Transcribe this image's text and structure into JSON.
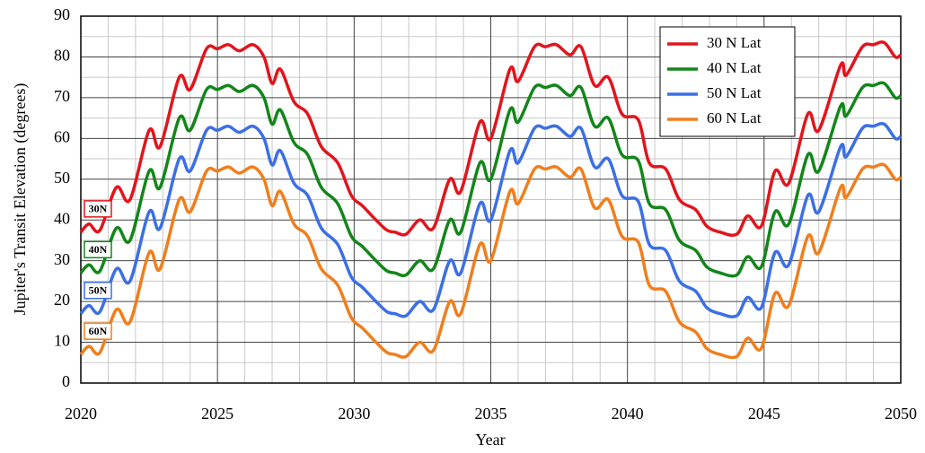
{
  "chart_data": {
    "type": "line",
    "xlabel": "Year",
    "ylabel": "Jupiter's Transit Elevation (degrees)",
    "x": [
      2020,
      2020.3,
      2020.7,
      2021.3,
      2021.8,
      2022.5,
      2022.9,
      2023.6,
      2024.0,
      2024.6,
      2025.0,
      2025.4,
      2025.8,
      2026.3,
      2026.7,
      2027.0,
      2027.3,
      2027.8,
      2028.3,
      2028.8,
      2029.4,
      2029.9,
      2030.3,
      2030.8,
      2031.2,
      2031.5,
      2031.9,
      2032.4,
      2032.9,
      2033.5,
      2033.9,
      2034.6,
      2035.0,
      2035.7,
      2036.0,
      2036.6,
      2037.0,
      2037.4,
      2037.9,
      2038.3,
      2038.8,
      2039.3,
      2039.8,
      2040.4,
      2040.8,
      2041.4,
      2041.9,
      2042.5,
      2042.9,
      2043.4,
      2044.0,
      2044.4,
      2044.9,
      2045.4,
      2045.9,
      2046.6,
      2047.0,
      2047.8,
      2048.0,
      2048.6,
      2049.0,
      2049.4,
      2049.8,
      2050
    ],
    "series": [
      {
        "name": "30 N Lat",
        "tag": "30N",
        "color": "#e3141c",
        "values": [
          37,
          39,
          37.5,
          48,
          45,
          62,
          58,
          75,
          72,
          82,
          82,
          83,
          81.5,
          83,
          80,
          73.5,
          77,
          69,
          66,
          58,
          54,
          46,
          43.5,
          40,
          37.5,
          37,
          36.5,
          40,
          38,
          50,
          47,
          64,
          60,
          77,
          74,
          82.5,
          82.5,
          83,
          80.5,
          82.5,
          73,
          75,
          66,
          64.5,
          54,
          52.5,
          45,
          42.5,
          38.5,
          37,
          36.5,
          41,
          38.5,
          52,
          49,
          66,
          62,
          78,
          75.5,
          82.5,
          83,
          83.5,
          80,
          80.5
        ]
      },
      {
        "name": "40 N Lat",
        "tag": "40N",
        "color": "#13861a",
        "values": [
          27,
          29,
          27.5,
          38,
          35,
          52,
          48,
          65,
          62,
          72,
          72,
          73,
          71.5,
          73,
          70,
          63.5,
          67,
          59,
          56,
          48,
          44,
          36,
          33.5,
          30,
          27.5,
          27,
          26.5,
          30,
          28,
          40,
          37,
          54,
          50,
          67,
          64,
          72.5,
          72.5,
          73,
          70.5,
          72.5,
          63,
          65,
          56,
          54.5,
          44,
          42.5,
          35,
          32.5,
          28.5,
          27,
          26.5,
          31,
          28.5,
          42,
          39,
          56,
          52,
          68,
          65.5,
          72.5,
          73,
          73.5,
          70,
          70.5
        ]
      },
      {
        "name": "50 N Lat",
        "tag": "50N",
        "color": "#3c6fe6",
        "values": [
          17,
          19,
          17.5,
          28,
          25,
          42,
          38,
          55,
          52,
          62,
          62,
          63,
          61.5,
          63,
          60,
          53.5,
          57,
          49,
          46,
          38,
          34,
          26,
          23.5,
          20,
          17.5,
          17,
          16.5,
          20,
          18,
          30,
          27,
          44,
          40,
          57,
          54,
          62.5,
          62.5,
          63,
          60.5,
          62.5,
          53,
          55,
          46,
          44.5,
          34,
          32.5,
          25,
          22.5,
          18.5,
          17,
          16.5,
          21,
          18.5,
          32,
          29,
          46,
          42,
          58,
          55.5,
          62.5,
          63,
          63.5,
          60,
          60.5
        ]
      },
      {
        "name": "60 N Lat",
        "tag": "60N",
        "color": "#f07e1c",
        "values": [
          7,
          9,
          7.5,
          18,
          15,
          32,
          28,
          45,
          42,
          52,
          52,
          53,
          51.5,
          53,
          50,
          43.5,
          47,
          39,
          36,
          28,
          24,
          16,
          13.5,
          10,
          7.5,
          7,
          6.5,
          10,
          8,
          20,
          17,
          34,
          30,
          47,
          44,
          52.5,
          52.5,
          53,
          50.5,
          52.5,
          43,
          45,
          36,
          34.5,
          24,
          22.5,
          15,
          12.5,
          8.5,
          7,
          6.5,
          11,
          8.5,
          22,
          19,
          36,
          32,
          48,
          45.5,
          52.5,
          53,
          53.5,
          50,
          50.5
        ]
      }
    ],
    "xlim": [
      2020,
      2050
    ],
    "xticks": [
      2020,
      2025,
      2030,
      2035,
      2040,
      2045,
      2050
    ],
    "ylim": [
      0,
      90
    ],
    "yticks": [
      0,
      10,
      20,
      30,
      40,
      50,
      60,
      70,
      80,
      90
    ],
    "grid": true,
    "minor_grid": true,
    "legend": "top-right"
  }
}
